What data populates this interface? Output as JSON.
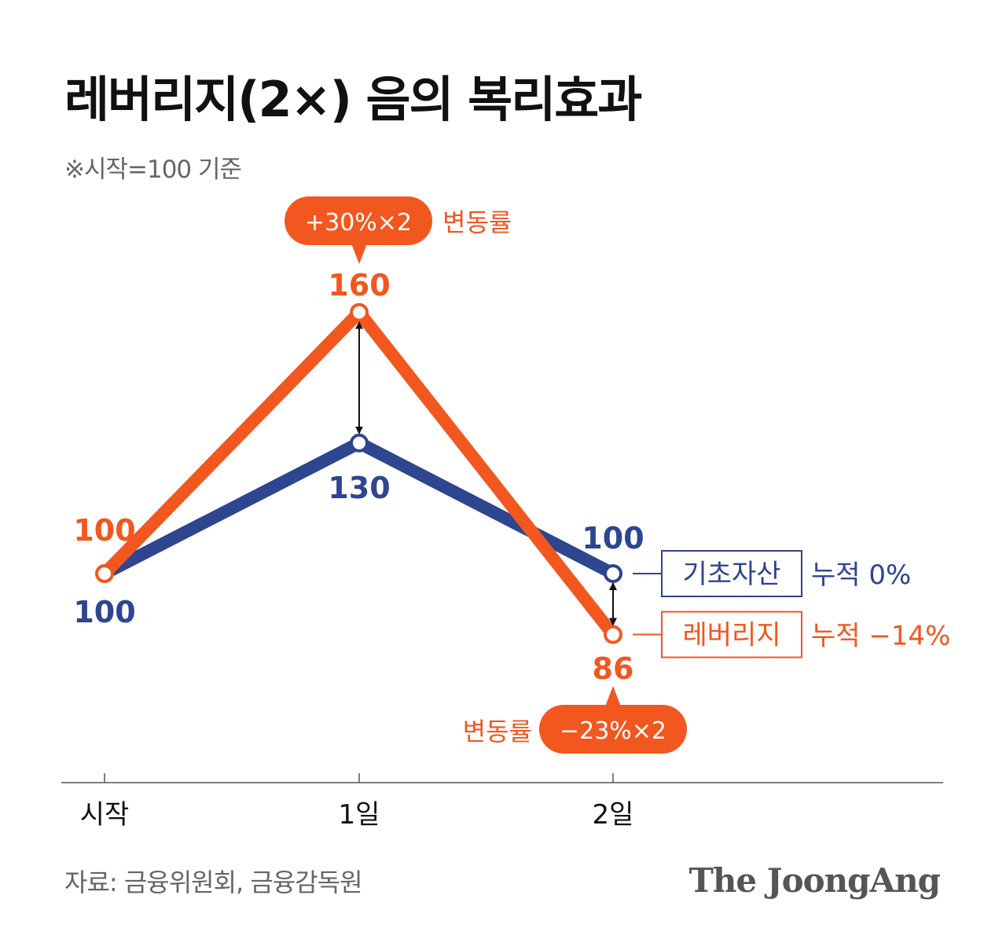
{
  "title": "레버리지(2×) 음의 복리효과",
  "subtitle": "※시작=100 기준",
  "source": "자료: 금융위원회, 금융감독원",
  "logo": "The JoongAng",
  "colors": {
    "leverage": "#F2571F",
    "base": "#2E4590",
    "axis": "#555555",
    "arrow": "#111111"
  },
  "annotations": {
    "top_bubble": "+30%×2",
    "top_bubble_label": "변동률",
    "bottom_bubble": "−23%×2",
    "bottom_bubble_label": "변동률"
  },
  "chart_data": {
    "type": "line",
    "categories": [
      "시작",
      "1일",
      "2일"
    ],
    "series": [
      {
        "name": "기초자산",
        "values": [
          100,
          130,
          100
        ],
        "value_labels": [
          "100",
          "130",
          "100"
        ],
        "note": "누적 0%",
        "color": "#2E4590"
      },
      {
        "name": "레버리지",
        "values": [
          100,
          160,
          86
        ],
        "value_labels": [
          "100",
          "160",
          "86"
        ],
        "note": "누적 −14%",
        "color": "#F2571F"
      }
    ],
    "ylim": [
      80,
      165
    ],
    "grid": false
  }
}
